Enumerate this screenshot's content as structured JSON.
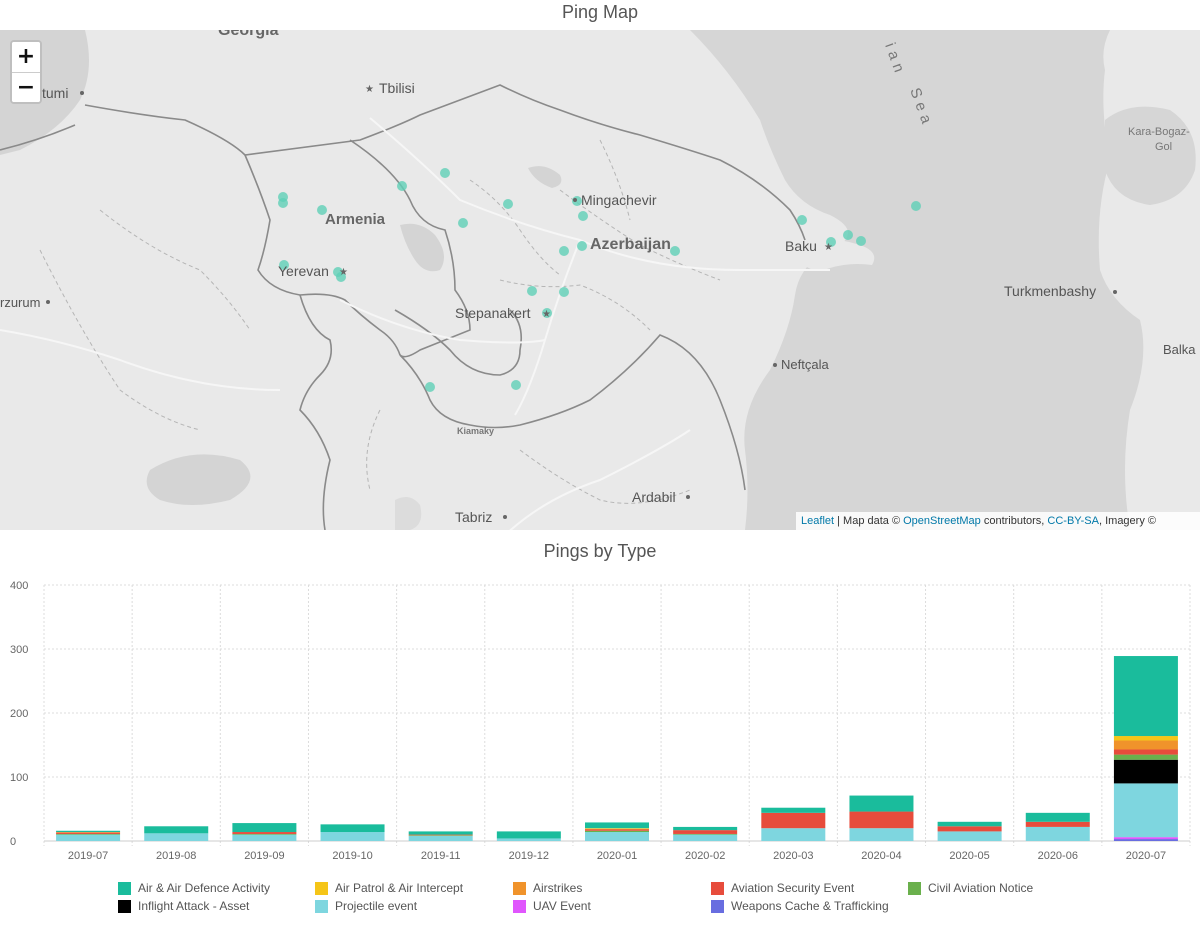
{
  "map_title": "Ping Map",
  "chart_title": "Pings by Type",
  "zoom": {
    "in_label": "+",
    "out_label": "−"
  },
  "map_labels": {
    "georgia": "Georgia",
    "tbilisi": "Tbilisi",
    "batumi": "tumi",
    "armenia": "Armenia",
    "yerevan": "Yerevan",
    "erzurum": "rzurum",
    "mingachevir": "Mingachevir",
    "azerbaijan": "Azerbaijan",
    "baku": "Baku",
    "stepanakert": "Stepanakert",
    "kiamaky": "Kiamaky",
    "neftcala": "Neftçala",
    "ardabil": "Ardabil",
    "tabriz": "Tabriz",
    "turkmenbashy": "Turkmenbashy",
    "balkan": "Balka",
    "kara_bogaz_1": "Kara-Bogaz-",
    "kara_bogaz_2": "Gol",
    "sea_1": "ian",
    "sea_2": "Sea"
  },
  "attribution": {
    "leaflet": "Leaflet",
    "sep": " | Map data © ",
    "osm": "OpenStreetMap",
    "contrib": " contributors, ",
    "license": "CC-BY-SA",
    "imagery": ", Imagery ©"
  },
  "colors": {
    "air_defence": "#1abc9c",
    "air_patrol": "#f5c518",
    "airstrikes": "#f0932b",
    "aviation_security": "#e74c3c",
    "civil_aviation": "#6ab04c",
    "inflight_attack": "#000000",
    "projectile": "#7ed6df",
    "uav": "#e056fd",
    "weapons_cache": "#686de0",
    "map_marker": "#5fcfb6"
  },
  "chart_data": {
    "type": "bar",
    "stacked": true,
    "title": "Pings by Type",
    "xlabel": "",
    "ylabel": "",
    "ylim": [
      0,
      400
    ],
    "yticks": [
      "0",
      "100",
      "200",
      "300",
      "400"
    ],
    "grid": true,
    "legend_position": "bottom",
    "categories": [
      "2019-07",
      "2019-08",
      "2019-09",
      "2019-10",
      "2019-11",
      "2019-12",
      "2020-01",
      "2020-02",
      "2020-03",
      "2020-04",
      "2020-05",
      "2020-06",
      "2020-07"
    ],
    "series": [
      {
        "name": "Weapons Cache & Trafficking",
        "color": "#686de0",
        "values": [
          0,
          0,
          0,
          0,
          0,
          0,
          0,
          0,
          0,
          0,
          0,
          0,
          3
        ]
      },
      {
        "name": "UAV Event",
        "color": "#e056fd",
        "values": [
          0,
          0,
          0,
          0,
          0,
          0,
          0,
          0,
          0,
          0,
          0,
          0,
          3
        ]
      },
      {
        "name": "Projectile event",
        "color": "#7ed6df",
        "values": [
          10,
          12,
          10,
          14,
          8,
          4,
          14,
          10,
          20,
          20,
          15,
          22,
          84
        ]
      },
      {
        "name": "Inflight Attack - Asset",
        "color": "#000000",
        "values": [
          0,
          0,
          0,
          0,
          0,
          0,
          0,
          0,
          0,
          0,
          0,
          0,
          37
        ]
      },
      {
        "name": "Civil Aviation Notice",
        "color": "#6ab04c",
        "values": [
          1,
          0,
          1,
          0,
          1,
          0,
          2,
          1,
          0,
          0,
          0,
          0,
          8
        ]
      },
      {
        "name": "Aviation Security Event",
        "color": "#e74c3c",
        "values": [
          2,
          0,
          3,
          0,
          1,
          0,
          2,
          6,
          24,
          26,
          8,
          8,
          8
        ]
      },
      {
        "name": "Airstrikes",
        "color": "#f0932b",
        "values": [
          1,
          0,
          0,
          0,
          0,
          0,
          1,
          0,
          0,
          0,
          0,
          0,
          14
        ]
      },
      {
        "name": "Air Patrol & Air Intercept",
        "color": "#f5c518",
        "values": [
          0,
          0,
          0,
          0,
          0,
          0,
          1,
          0,
          0,
          0,
          0,
          0,
          7
        ]
      },
      {
        "name": "Air & Air Defence Activity",
        "color": "#1abc9c",
        "values": [
          2,
          11,
          14,
          12,
          5,
          11,
          9,
          5,
          8,
          25,
          7,
          14,
          125
        ]
      }
    ]
  },
  "legend": [
    {
      "label": "Air & Air Defence Activity",
      "color": "#1abc9c"
    },
    {
      "label": "Air Patrol & Air Intercept",
      "color": "#f5c518"
    },
    {
      "label": "Airstrikes",
      "color": "#f0932b"
    },
    {
      "label": "Aviation Security Event",
      "color": "#e74c3c"
    },
    {
      "label": "Civil Aviation Notice",
      "color": "#6ab04c"
    },
    {
      "label": "Inflight Attack - Asset",
      "color": "#000000"
    },
    {
      "label": "Projectile event",
      "color": "#7ed6df"
    },
    {
      "label": "UAV Event",
      "color": "#e056fd"
    },
    {
      "label": "Weapons Cache & Trafficking",
      "color": "#686de0"
    }
  ]
}
